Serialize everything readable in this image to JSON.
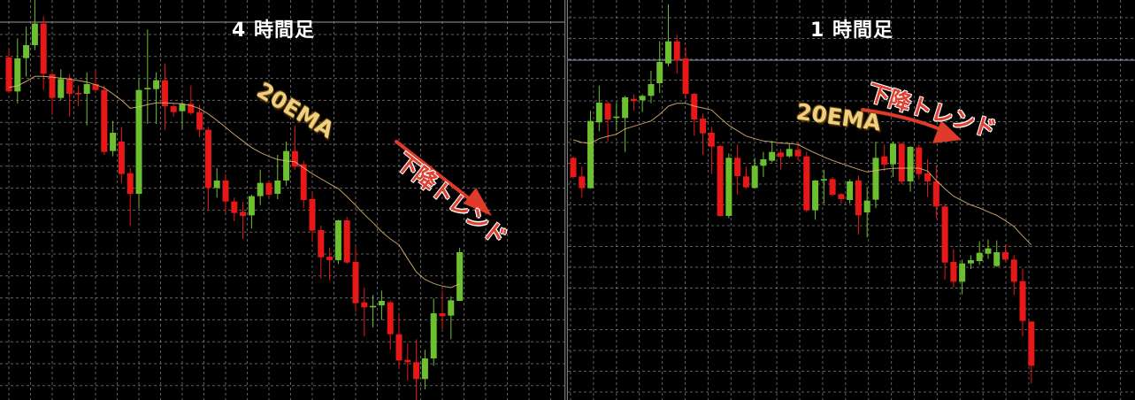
{
  "colors": {
    "up": "#6cc030",
    "down": "#e81818",
    "ema": "#e8b878",
    "grid": "#8a8a8a",
    "background": "#000000",
    "arrow": "#e03a28"
  },
  "chart_data": [
    {
      "type": "candlestick",
      "title": "4 時間足",
      "ylim": [
        4.4,
        140
      ],
      "grid": true,
      "annotations": {
        "ema": "20EMA",
        "trend": "下降トレンド"
      },
      "ema_name": "20EMA",
      "candles": [
        [
          120.5,
          123.5,
          108.5,
          109
        ],
        [
          109,
          127,
          105,
          120.2
        ],
        [
          120.3,
          131,
          114,
          124.7
        ],
        [
          124.7,
          140,
          123,
          132
        ],
        [
          132,
          134.5,
          109.5,
          115
        ],
        [
          114.8,
          115.5,
          101,
          106.8
        ],
        [
          106.8,
          116.5,
          106,
          113.2
        ],
        [
          113.2,
          115,
          100.5,
          108.2
        ],
        [
          108.5,
          111,
          104,
          108
        ],
        [
          108.2,
          115.5,
          97.5,
          111.5
        ],
        [
          111.5,
          116,
          109,
          109.5
        ],
        [
          109.5,
          111,
          87.5,
          88.5
        ],
        [
          88.8,
          99,
          87,
          95
        ],
        [
          92,
          97,
          78,
          81
        ],
        [
          81.3,
          83,
          63.5,
          74.3
        ],
        [
          74.3,
          113.5,
          69.5,
          109.5
        ],
        [
          109.7,
          130,
          98,
          110.2
        ],
        [
          109.8,
          115.5,
          98,
          112.8
        ],
        [
          112.8,
          118.5,
          96,
          104
        ],
        [
          104,
          105,
          100.5,
          102
        ],
        [
          102.3,
          105.5,
          96,
          104.8
        ],
        [
          104.8,
          111,
          101,
          101.7
        ],
        [
          102,
          104.5,
          93.5,
          96
        ],
        [
          96,
          97,
          69,
          76.3
        ],
        [
          76.3,
          83,
          73,
          78.8
        ],
        [
          78.8,
          81,
          68,
          71.7
        ],
        [
          71.7,
          73,
          65,
          67.8
        ],
        [
          68.2,
          71.5,
          59,
          66.8
        ],
        [
          67,
          74,
          62.5,
          73.5
        ],
        [
          73.5,
          82.5,
          70.5,
          78
        ],
        [
          78,
          78.5,
          73,
          74
        ],
        [
          74.3,
          87.5,
          72.5,
          78.8
        ],
        [
          78.8,
          92,
          77,
          88.8
        ],
        [
          88.8,
          97.5,
          82.5,
          83.5
        ],
        [
          84.3,
          85.5,
          69.5,
          72.2
        ],
        [
          72.5,
          74.5,
          58,
          61.8
        ],
        [
          62,
          63.5,
          45.5,
          52.8
        ],
        [
          53,
          56,
          45,
          51.8
        ],
        [
          51.8,
          65.5,
          50.5,
          65.3
        ],
        [
          65.3,
          66.5,
          50.5,
          51
        ],
        [
          51.2,
          56.5,
          34.2,
          37.2
        ],
        [
          37.5,
          42.5,
          26,
          35.8
        ],
        [
          35.8,
          40,
          29,
          36.3
        ],
        [
          36.5,
          41.5,
          31.5,
          38
        ],
        [
          37.5,
          38,
          21.5,
          26.7
        ],
        [
          26.7,
          33,
          15,
          17.8
        ],
        [
          18,
          23.5,
          11,
          17.2
        ],
        [
          17.2,
          25,
          4.4,
          11.5
        ],
        [
          11.5,
          21.5,
          8,
          18.5
        ],
        [
          18.5,
          38.8,
          16,
          33.8
        ],
        [
          33.8,
          41.5,
          28,
          32.8
        ],
        [
          33,
          39.5,
          25,
          38.2
        ],
        [
          38,
          56,
          38,
          54.5
        ]
      ],
      "ema": [
        110.4,
        110.9,
        112.4,
        114.1,
        114.1,
        113.8,
        113.5,
        113.2,
        112.7,
        112.2,
        111.3,
        110.2,
        108.2,
        106,
        103.3,
        103.8,
        104.5,
        105.1,
        105.1,
        105,
        104.8,
        104.2,
        103.2,
        101.4,
        99.2,
        96.9,
        94.4,
        92.2,
        90,
        88.3,
        87,
        85.9,
        85.5,
        85.2,
        83.1,
        81.1,
        79.4,
        77.7,
        76.1,
        73.3,
        70.4,
        67.3,
        64.5,
        61.5,
        59,
        57,
        52.3,
        47.8,
        45.3,
        43.9,
        43,
        42.5,
        43.8
      ]
    },
    {
      "type": "candlestick",
      "title": "1 時間足",
      "ylim": [
        4.4,
        140
      ],
      "grid": true,
      "annotations": {
        "ema": "20EMA",
        "trend": "下降トレンド"
      },
      "ema_name": "20EMA",
      "candles": [
        [
          86.5,
          87,
          79.5,
          80
        ],
        [
          80.2,
          83.5,
          73,
          76.2
        ],
        [
          76.2,
          102.5,
          76,
          99
        ],
        [
          98.5,
          111,
          95.5,
          105.2
        ],
        [
          105,
          105.5,
          92,
          99.5
        ],
        [
          100,
          105,
          95.5,
          100.5
        ],
        [
          100,
          107.5,
          88.5,
          107
        ],
        [
          106.5,
          108,
          102.5,
          105.8
        ],
        [
          106,
          108,
          102,
          107.5
        ],
        [
          107.5,
          116,
          105,
          111.5
        ],
        [
          111.8,
          126,
          108.5,
          119
        ],
        [
          118.5,
          138.5,
          117.5,
          126
        ],
        [
          126,
          128.2,
          115,
          119.5
        ],
        [
          120.2,
          124,
          106.5,
          108.2
        ],
        [
          108.2,
          108.5,
          94,
          99.5
        ],
        [
          99.8,
          101.5,
          87.5,
          94.8
        ],
        [
          95,
          97,
          81,
          90.3
        ],
        [
          90.5,
          91,
          66.5,
          66.8
        ],
        [
          66.8,
          88,
          66,
          86.5
        ],
        [
          86.5,
          91,
          74,
          80.3
        ],
        [
          80.2,
          83.5,
          76,
          76.5
        ],
        [
          76.3,
          86.5,
          76,
          83.8
        ],
        [
          83.8,
          88.5,
          80,
          86
        ],
        [
          85.5,
          92.2,
          85,
          88.5
        ],
        [
          88.3,
          89.5,
          82.5,
          86.8
        ],
        [
          87,
          91.5,
          86.5,
          89.5
        ],
        [
          89.2,
          91.8,
          85.5,
          87
        ],
        [
          87,
          88.5,
          68.2,
          68.7
        ],
        [
          68.7,
          79,
          65.5,
          78.8
        ],
        [
          78.8,
          82.5,
          71,
          79.3
        ],
        [
          79.3,
          80,
          73.5,
          74
        ],
        [
          74.2,
          74.5,
          71,
          72.5
        ],
        [
          72.2,
          79.2,
          71,
          78.5
        ],
        [
          78.8,
          80.5,
          60.5,
          67
        ],
        [
          68,
          76.5,
          59.5,
          72
        ],
        [
          72.3,
          92,
          69.5,
          86.5
        ],
        [
          87,
          91,
          82,
          84.2
        ],
        [
          84.3,
          92,
          80,
          91.3
        ],
        [
          91.3,
          91.5,
          77.5,
          78.5
        ],
        [
          78.5,
          90.5,
          75,
          90.2
        ],
        [
          90,
          91,
          79.2,
          81
        ],
        [
          81.2,
          86,
          73.2,
          78.5
        ],
        [
          78.5,
          84,
          66,
          70
        ],
        [
          70,
          71,
          45.2,
          51
        ],
        [
          51.2,
          55.5,
          42.5,
          44.5
        ],
        [
          44.5,
          52,
          40.2,
          50.7
        ],
        [
          50.7,
          53.5,
          48.8,
          51.8
        ],
        [
          51.5,
          58.2,
          50.2,
          54.3
        ],
        [
          54,
          58.8,
          52.2,
          55.8
        ],
        [
          49.8,
          58.5,
          49.5,
          54.5
        ],
        [
          54.5,
          57,
          51.5,
          52
        ],
        [
          52,
          53.5,
          40,
          44.5
        ],
        [
          44.7,
          49,
          26,
          31.2
        ],
        [
          31,
          31,
          10,
          16
        ]
      ],
      "ema": [
        92.6,
        91.7,
        91.4,
        93,
        93.8,
        94.5,
        96.3,
        97.2,
        98.1,
        99,
        101.2,
        104,
        105,
        105,
        104,
        103.4,
        102.7,
        100,
        97.5,
        95.7,
        93.9,
        93,
        92.2,
        91.9,
        91.5,
        91.3,
        91,
        89.5,
        88.1,
        86.8,
        85.6,
        84.6,
        83.6,
        82.6,
        81.7,
        82.2,
        82.6,
        82.9,
        83,
        83,
        83,
        82,
        78.8,
        76,
        73.5,
        72,
        70.5,
        69.5,
        68.2,
        67,
        65.2,
        63.2,
        60,
        57
      ]
    }
  ]
}
